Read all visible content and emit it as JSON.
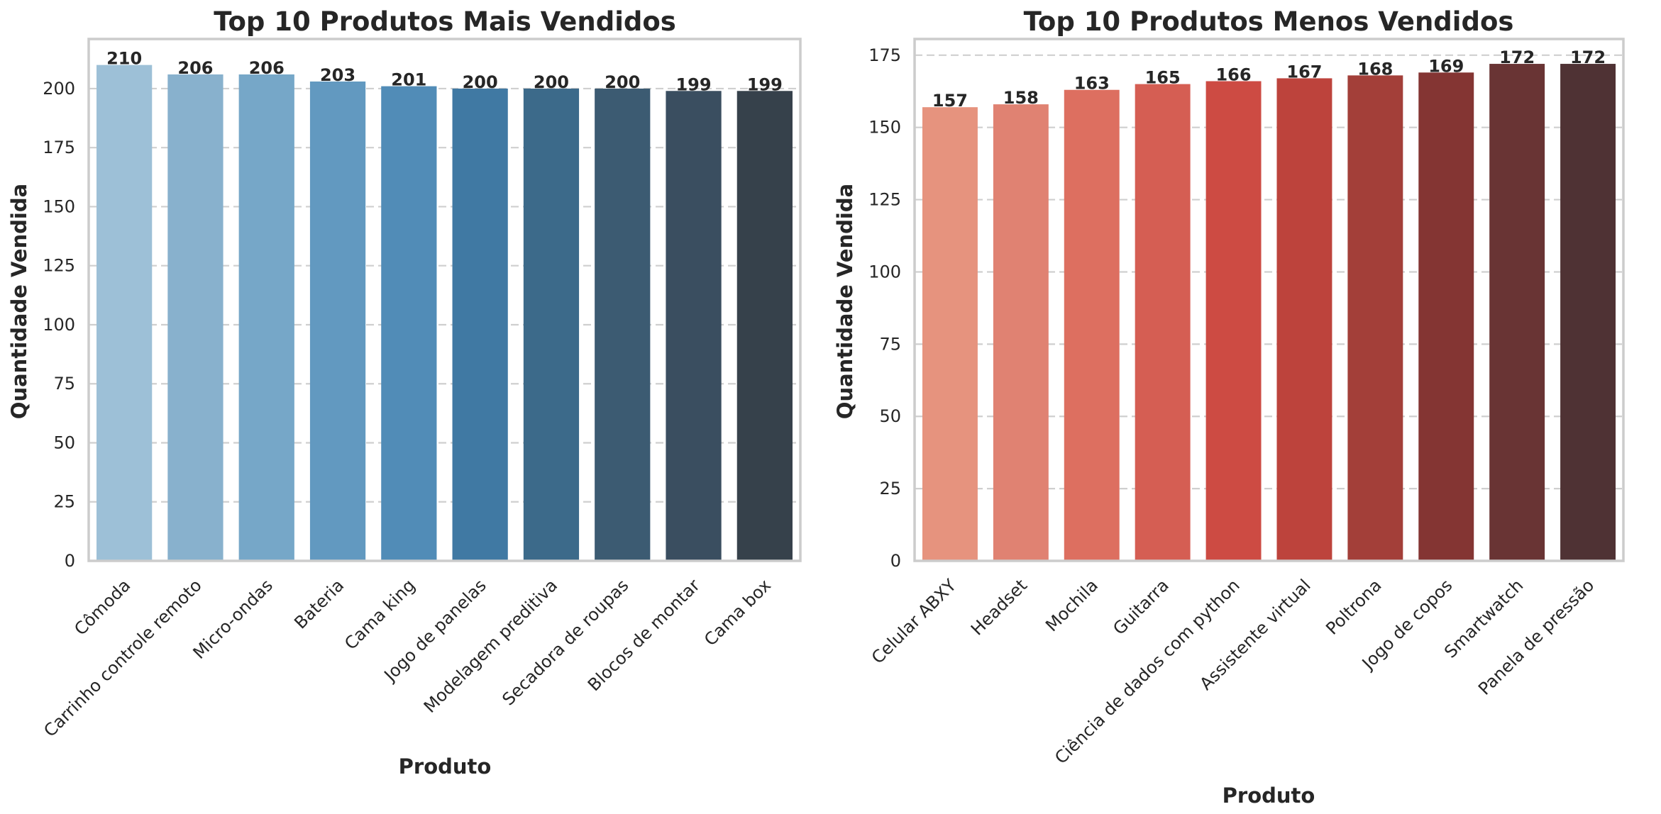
{
  "chart_data": [
    {
      "type": "bar",
      "title": "Top 10 Produtos Mais Vendidos",
      "xlabel": "Produto",
      "ylabel": "Quantidade Vendida",
      "categories": [
        "Cômoda",
        "Carrinho controle remoto",
        "Micro-ondas",
        "Bateria",
        "Cama king",
        "Jogo de panelas",
        "Modelagem preditiva",
        "Secadora de roupas",
        "Blocos de montar",
        "Cama box"
      ],
      "values": [
        210,
        206,
        206,
        203,
        201,
        200,
        200,
        200,
        199,
        199
      ],
      "ylim": [
        0,
        221
      ],
      "yticks": [
        0,
        25,
        50,
        75,
        100,
        125,
        150,
        175,
        200
      ],
      "grid": true,
      "palette": "Blues_d",
      "colors": [
        "#9dc0d7",
        "#88b1cd",
        "#76a7c8",
        "#6299c0",
        "#518cb7",
        "#4079a3",
        "#3c6a8a",
        "#3c5b72",
        "#3a4e60",
        "#36414b"
      ]
    },
    {
      "type": "bar",
      "title": "Top 10 Produtos Menos Vendidos",
      "xlabel": "Produto",
      "ylabel": "Quantidade Vendida",
      "categories": [
        "Celular ABXY",
        "Headset",
        "Mochila",
        "Guitarra",
        "Ciência de dados com python",
        "Assistente virtual",
        "Poltrona",
        "Jogo de copos",
        "Smartwatch",
        "Panela de pressão"
      ],
      "values": [
        157,
        158,
        163,
        165,
        166,
        167,
        168,
        169,
        172,
        172
      ],
      "ylim": [
        0,
        180.6
      ],
      "yticks": [
        0,
        25,
        50,
        75,
        100,
        125,
        150,
        175
      ],
      "grid": true,
      "palette": "Reds_d",
      "colors": [
        "#e6937e",
        "#e08272",
        "#dd6f60",
        "#d55e53",
        "#cd4b43",
        "#bd433c",
        "#a33f39",
        "#843533",
        "#693434",
        "#4f3234"
      ]
    }
  ]
}
